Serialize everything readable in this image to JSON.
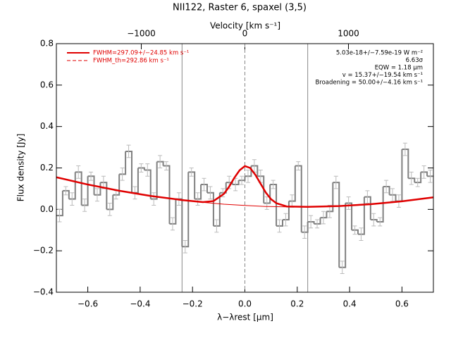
{
  "chart_data": {
    "type": "step",
    "title": "NII122, Raster 6, spaxel (3,5)",
    "xlabel": "λ−λrest [μm]",
    "ylabel": "Flux density [Jy]",
    "x2label": "Velocity [km s⁻¹]",
    "xlim": [
      -0.72,
      0.72
    ],
    "ylim": [
      -0.4,
      0.8
    ],
    "x2lim": [
      -1820,
      1820
    ],
    "xticks": [
      {
        "value": -0.6,
        "label": "−0.6"
      },
      {
        "value": -0.4,
        "label": "−0.4"
      },
      {
        "value": -0.2,
        "label": "−0.2"
      },
      {
        "value": 0,
        "label": "0.0"
      },
      0.2,
      0.4,
      0.6
    ],
    "yticks": [
      {
        "value": -0.4,
        "label": "−0.4"
      },
      {
        "value": -0.2,
        "label": "−0.2"
      },
      {
        "value": 0,
        "label": "0.0"
      },
      0.2,
      0.4,
      0.6,
      0.8
    ],
    "x2ticks": [
      {
        "value": -1000,
        "label": "−1000"
      },
      0,
      1000
    ],
    "x": [
      -0.708,
      -0.684,
      -0.66,
      -0.636,
      -0.612,
      -0.588,
      -0.564,
      -0.54,
      -0.516,
      -0.492,
      -0.468,
      -0.444,
      -0.42,
      -0.396,
      -0.372,
      -0.348,
      -0.324,
      -0.3,
      -0.276,
      -0.252,
      -0.228,
      -0.204,
      -0.18,
      -0.156,
      -0.132,
      -0.108,
      -0.084,
      -0.06,
      -0.036,
      -0.012,
      0.012,
      0.036,
      0.06,
      0.084,
      0.108,
      0.132,
      0.156,
      0.18,
      0.204,
      0.228,
      0.252,
      0.276,
      0.3,
      0.324,
      0.348,
      0.372,
      0.396,
      0.42,
      0.444,
      0.468,
      0.492,
      0.516,
      0.54,
      0.564,
      0.588,
      0.612,
      0.636,
      0.66,
      0.684,
      0.708
    ],
    "series": [
      {
        "name": "Spectrum",
        "color": "#808080",
        "values": [
          -0.03,
          0.09,
          0.05,
          0.18,
          0.02,
          0.16,
          0.07,
          0.13,
          0.0,
          0.07,
          0.17,
          0.28,
          0.08,
          0.2,
          0.19,
          0.05,
          0.23,
          0.21,
          -0.07,
          0.05,
          -0.18,
          0.18,
          0.05,
          0.12,
          0.08,
          -0.08,
          0.08,
          0.13,
          0.12,
          0.14,
          0.16,
          0.21,
          0.16,
          0.03,
          0.12,
          -0.08,
          -0.05,
          0.04,
          0.21,
          -0.11,
          -0.06,
          -0.07,
          -0.04,
          -0.01,
          0.13,
          -0.28,
          0.03,
          -0.1,
          -0.12,
          0.06,
          -0.05,
          -0.06,
          0.11,
          0.07,
          0.04,
          0.29,
          0.15,
          0.13,
          0.18,
          0.16
        ],
        "errors": [
          0.03,
          0.02,
          0.03,
          0.03,
          0.03,
          0.02,
          0.03,
          0.03,
          0.03,
          0.02,
          0.03,
          0.03,
          0.03,
          0.02,
          0.03,
          0.03,
          0.03,
          0.02,
          0.03,
          0.03,
          0.03,
          0.02,
          0.03,
          0.03,
          0.03,
          0.03,
          0.02,
          0.03,
          0.03,
          0.02,
          0.03,
          0.03,
          0.03,
          0.03,
          0.02,
          0.03,
          0.03,
          0.03,
          0.02,
          0.03,
          0.03,
          0.02,
          0.03,
          0.03,
          0.03,
          0.03,
          0.03,
          0.02,
          0.03,
          0.03,
          0.03,
          0.02,
          0.03,
          0.03,
          0.03,
          0.03,
          0.03,
          0.02,
          0.03,
          0.03
        ]
      }
    ],
    "fit": {
      "color": "#e00000",
      "x": [
        -0.72,
        -0.6,
        -0.48,
        -0.36,
        -0.24,
        -0.16,
        -0.12,
        -0.08,
        -0.06,
        -0.04,
        -0.02,
        0,
        0.02,
        0.04,
        0.06,
        0.08,
        0.1,
        0.12,
        0.16,
        0.24,
        0.36,
        0.48,
        0.6,
        0.72
      ],
      "values": [
        0.155,
        0.12,
        0.09,
        0.065,
        0.045,
        0.035,
        0.04,
        0.075,
        0.11,
        0.153,
        0.189,
        0.209,
        0.2,
        0.167,
        0.124,
        0.081,
        0.049,
        0.03,
        0.014,
        0.012,
        0.016,
        0.025,
        0.039,
        0.058
      ]
    },
    "continuum": {
      "color": "#e00000",
      "x": [
        -0.16,
        -0.08,
        0,
        0.08,
        0.16
      ],
      "values": [
        0.034,
        0.025,
        0.019,
        0.014,
        0.012
      ]
    },
    "vlines": [
      {
        "x": -0.24,
        "dashed": false
      },
      {
        "x": 0,
        "dashed": true
      },
      {
        "x": 0.24,
        "dashed": false
      }
    ],
    "legend": [
      {
        "label": "FWHM=297.09+/−24.85 km s⁻¹",
        "color": "#e00000",
        "dashed": false
      },
      {
        "label": "FWHM_th=292.86 km s⁻¹",
        "color": "#e00000",
        "dashed": true
      }
    ],
    "annotations": [
      "5.03e-18+/−7.59e-19 W m⁻²",
      "6.63σ",
      "EQW = 1.18 μm",
      "v = 15.37+/−19.54 km s⁻¹",
      "Broadening = 50.00+/−4.16 km s⁻¹"
    ]
  }
}
